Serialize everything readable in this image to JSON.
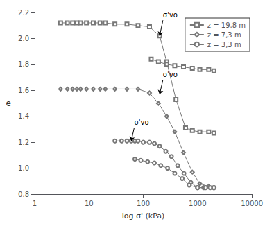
{
  "chart_data": {
    "type": "line",
    "title": "",
    "xlabel": "log σ' (kPa)",
    "ylabel": "e",
    "log": "x",
    "grid": false,
    "legend": "upper right",
    "xlim": [
      1,
      10000
    ],
    "ylim": [
      0.8,
      2.2
    ],
    "xticks": [
      1,
      10,
      100,
      1000,
      10000
    ],
    "yticks": [
      0.8,
      {
        "value": 1,
        "label": "1.0"
      },
      1.2,
      1.4,
      1.6,
      1.8,
      {
        "value": 2,
        "label": "2.0"
      },
      2.2
    ],
    "series": [
      {
        "name": "z = 19,8 m",
        "color": "#777777",
        "marker": "square",
        "x": [
          3,
          4,
          5,
          6,
          7,
          9,
          12,
          16,
          20,
          30,
          50,
          80,
          130,
          200,
          270,
          400,
          600,
          800,
          1100,
          1600,
          2000
        ],
        "values": [
          2.12,
          2.12,
          2.12,
          2.12,
          2.12,
          2.12,
          2.12,
          2.12,
          2.12,
          2.11,
          2.11,
          2.1,
          2.09,
          2.02,
          1.82,
          1.53,
          1.31,
          1.29,
          1.28,
          1.28,
          1.27
        ]
      },
      {
        "color": "#777777",
        "marker": "square",
        "x": [
          140,
          190,
          270,
          380,
          550,
          800,
          1100,
          1600,
          2000
        ],
        "values": [
          1.84,
          1.82,
          1.8,
          1.79,
          1.78,
          1.77,
          1.76,
          1.76,
          1.75
        ]
      },
      {
        "name": "z = 7,3 m",
        "color": "#777777",
        "marker": "diamond",
        "x": [
          3,
          4,
          5,
          6,
          7,
          9,
          12,
          16,
          20,
          30,
          50,
          80,
          130,
          190,
          270,
          380,
          550,
          800,
          1100,
          1600,
          2000
        ],
        "values": [
          1.61,
          1.61,
          1.61,
          1.61,
          1.61,
          1.61,
          1.61,
          1.61,
          1.61,
          1.61,
          1.61,
          1.61,
          1.58,
          1.5,
          1.4,
          1.28,
          1.12,
          0.97,
          0.88,
          0.86,
          0.85
        ]
      },
      {
        "name": "z = 3,3 m",
        "color": "#777777",
        "marker": "circle",
        "x": [
          30,
          40,
          50,
          60,
          70,
          80,
          100,
          130,
          160,
          200,
          260,
          330,
          430,
          560,
          750,
          1000,
          1300,
          1700,
          2000
        ],
        "values": [
          1.21,
          1.21,
          1.21,
          1.21,
          1.21,
          1.21,
          1.2,
          1.2,
          1.19,
          1.17,
          1.13,
          1.09,
          1.02,
          0.96,
          0.89,
          0.85,
          0.85,
          0.85,
          0.85
        ]
      },
      {
        "color": "#777777",
        "marker": "circle",
        "x": [
          70,
          90,
          120,
          160,
          210,
          280,
          380,
          520,
          700,
          1000,
          1400,
          2000
        ],
        "values": [
          1.07,
          1.06,
          1.05,
          1.04,
          1.02,
          1.0,
          0.96,
          0.92,
          0.87,
          0.85,
          0.85,
          0.85
        ]
      }
    ],
    "annotations": [
      {
        "text": "σ'vo",
        "xy": [
          200,
          2.02
        ],
        "xytext": [
          230,
          2.14
        ]
      },
      {
        "text": "σ'vo",
        "xy": [
          200,
          1.57
        ],
        "xytext": [
          230,
          1.68
        ]
      },
      {
        "text": "σ'vo",
        "xy": [
          60,
          1.21
        ],
        "xytext": [
          68,
          1.31
        ]
      }
    ]
  }
}
